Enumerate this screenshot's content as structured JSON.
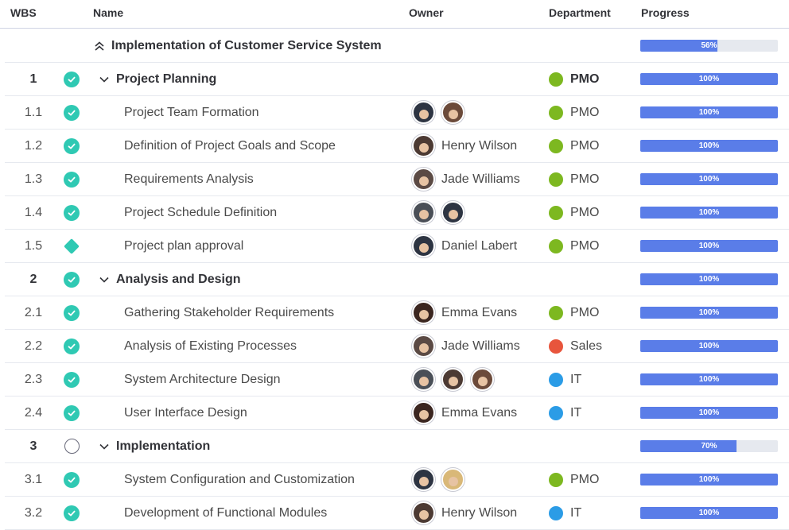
{
  "header": {
    "wbs": "WBS",
    "name": "Name",
    "owner": "Owner",
    "department": "Department",
    "progress": "Progress"
  },
  "colors": {
    "check": "#2fc9b3",
    "bar_fill": "#5a7de8",
    "bar_track": "#e6e9ef",
    "PMO": "#7db820",
    "Sales": "#e8553c",
    "IT": "#2b9ce6"
  },
  "rows": [
    {
      "kind": "project",
      "wbs": "",
      "status": "",
      "name": "Implementation of Customer Service System",
      "owner": "",
      "avatars": [],
      "dept": "",
      "progress": 0.56,
      "progress_label": "56%"
    },
    {
      "kind": "group",
      "wbs": "1",
      "status": "done",
      "name": "Project Planning",
      "owner": "",
      "avatars": [],
      "dept": "PMO",
      "progress": 1.0,
      "progress_label": "100%"
    },
    {
      "kind": "task",
      "wbs": "1.1",
      "status": "done",
      "name": "Project Team Formation",
      "owner": "",
      "avatars": [
        "#2d3442",
        "#6b4a3a"
      ],
      "dept": "PMO",
      "progress": 1.0,
      "progress_label": "100%"
    },
    {
      "kind": "task",
      "wbs": "1.2",
      "status": "done",
      "name": "Definition of Project Goals and Scope",
      "owner": "Henry Wilson",
      "avatars": [
        "#4c3a33"
      ],
      "dept": "PMO",
      "progress": 1.0,
      "progress_label": "100%"
    },
    {
      "kind": "task",
      "wbs": "1.3",
      "status": "done",
      "name": "Requirements Analysis",
      "owner": "Jade Williams",
      "avatars": [
        "#5b4a44"
      ],
      "dept": "PMO",
      "progress": 1.0,
      "progress_label": "100%"
    },
    {
      "kind": "task",
      "wbs": "1.4",
      "status": "done",
      "name": "Project Schedule Definition",
      "owner": "",
      "avatars": [
        "#4a4f57",
        "#2d3442"
      ],
      "dept": "PMO",
      "progress": 1.0,
      "progress_label": "100%"
    },
    {
      "kind": "task",
      "wbs": "1.5",
      "status": "milestone",
      "name": "Project plan approval",
      "owner": "Daniel Labert",
      "avatars": [
        "#2d3442"
      ],
      "dept": "PMO",
      "progress": 1.0,
      "progress_label": "100%"
    },
    {
      "kind": "group",
      "wbs": "2",
      "status": "done",
      "name": "Analysis and Design",
      "owner": "",
      "avatars": [],
      "dept": "",
      "progress": 1.0,
      "progress_label": "100%"
    },
    {
      "kind": "task",
      "wbs": "2.1",
      "status": "done",
      "name": "Gathering Stakeholder Requirements",
      "owner": "Emma Evans",
      "avatars": [
        "#3b2620"
      ],
      "dept": "PMO",
      "progress": 1.0,
      "progress_label": "100%"
    },
    {
      "kind": "task",
      "wbs": "2.2",
      "status": "done",
      "name": "Analysis of Existing Processes",
      "owner": "Jade Williams",
      "avatars": [
        "#5b4a44"
      ],
      "dept": "Sales",
      "progress": 1.0,
      "progress_label": "100%"
    },
    {
      "kind": "task",
      "wbs": "2.3",
      "status": "done",
      "name": "System Architecture Design",
      "owner": "",
      "avatars": [
        "#4a4f57",
        "#4c3a33",
        "#6b4a3a"
      ],
      "dept": "IT",
      "progress": 1.0,
      "progress_label": "100%"
    },
    {
      "kind": "task",
      "wbs": "2.4",
      "status": "done",
      "name": "User Interface Design",
      "owner": "Emma Evans",
      "avatars": [
        "#3b2620"
      ],
      "dept": "IT",
      "progress": 1.0,
      "progress_label": "100%"
    },
    {
      "kind": "group",
      "wbs": "3",
      "status": "open",
      "name": "Implementation",
      "owner": "",
      "avatars": [],
      "dept": "",
      "progress": 0.7,
      "progress_label": "70%"
    },
    {
      "kind": "task",
      "wbs": "3.1",
      "status": "done",
      "name": "System Configuration and Customization",
      "owner": "",
      "avatars": [
        "#2d3442",
        "#d9b878"
      ],
      "dept": "PMO",
      "progress": 1.0,
      "progress_label": "100%"
    },
    {
      "kind": "task",
      "wbs": "3.2",
      "status": "done",
      "name": "Development of Functional Modules",
      "owner": "Henry Wilson",
      "avatars": [
        "#4c3a33"
      ],
      "dept": "IT",
      "progress": 1.0,
      "progress_label": "100%"
    }
  ]
}
